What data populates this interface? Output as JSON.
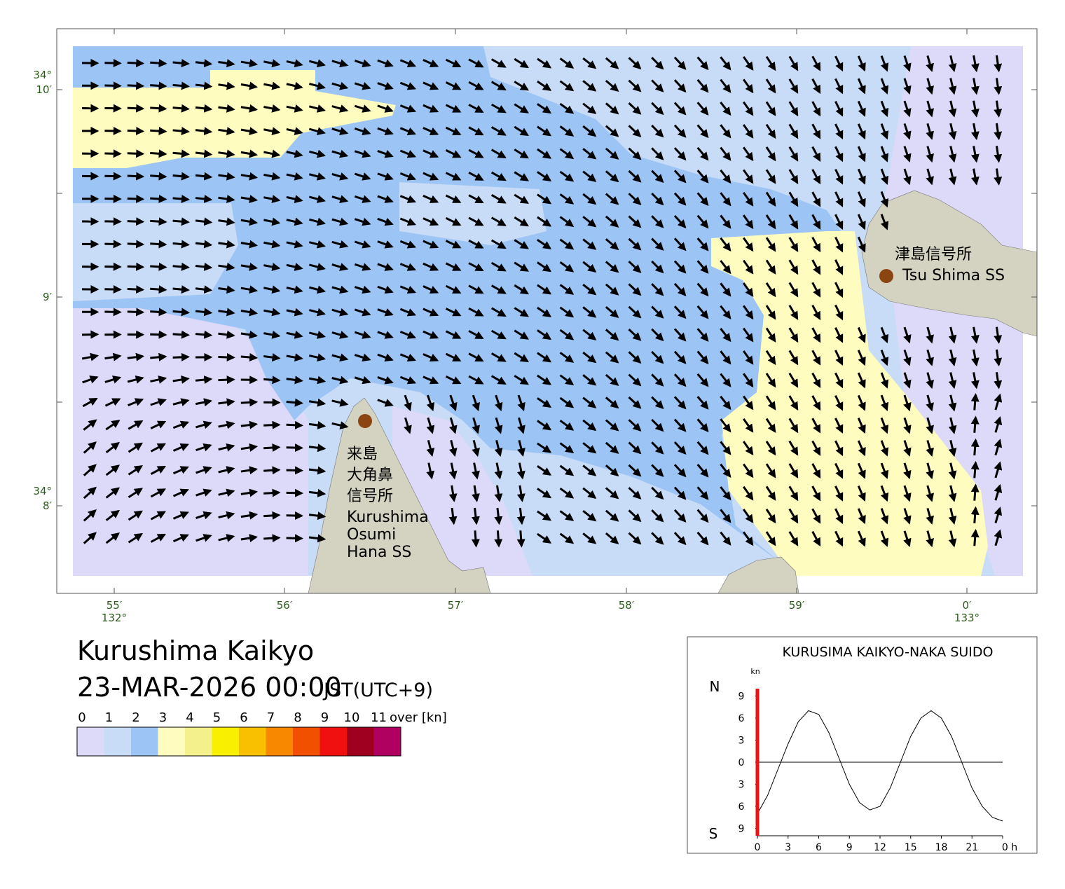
{
  "map": {
    "lat_labels": [
      {
        "deg": "34°",
        "min": "10′"
      },
      {
        "min": "9′"
      },
      {
        "deg": "34°",
        "min": "8′"
      }
    ],
    "lon_labels": [
      {
        "min": "55′",
        "deg": "132°"
      },
      {
        "min": "56′"
      },
      {
        "min": "57′"
      },
      {
        "min": "58′"
      },
      {
        "min": "59′"
      },
      {
        "min": "0′",
        "deg": "133°"
      }
    ],
    "places": [
      {
        "lines": [
          "来島",
          "大角鼻",
          "信号所",
          "Kurushima",
          "Osumi",
          "Hana SS"
        ]
      },
      {
        "lines": [
          "津島信号所",
          "Tsu Shima SS"
        ]
      }
    ]
  },
  "header": {
    "title": "Kurushima Kaikyo",
    "datetime": "23-MAR-2026 00:00",
    "timezone": "JST(UTC+9)"
  },
  "legend": {
    "labels": [
      "0",
      "1",
      "2",
      "3",
      "4",
      "5",
      "6",
      "7",
      "8",
      "9",
      "10",
      "11",
      "over [kn]"
    ],
    "colors": [
      "#dcdaf8",
      "#c8dcf8",
      "#9cc4f4",
      "#fffcc0",
      "#f4f08c",
      "#f8f000",
      "#f8c000",
      "#f88800",
      "#f05000",
      "#f01010",
      "#a00020",
      "#b00060"
    ]
  },
  "chart_data": {
    "type": "line",
    "title": "KURUSIMA KAIKYO-NAKA SUIDO",
    "y_unit": "kn",
    "north_label": "N",
    "south_label": "S",
    "x": [
      0,
      1,
      2,
      3,
      4,
      5,
      6,
      7,
      8,
      9,
      10,
      11,
      12,
      13,
      14,
      15,
      16,
      17,
      18,
      19,
      20,
      21,
      22,
      23,
      24
    ],
    "values": [
      -7,
      -4.5,
      -1,
      2.5,
      5.5,
      7,
      6.5,
      4,
      0.5,
      -3,
      -5.5,
      -6.5,
      -6,
      -3.5,
      0,
      3.5,
      6,
      7,
      6,
      3.5,
      0,
      -3.5,
      -6,
      -7.5,
      -8
    ],
    "color": "#000000",
    "marker_x": 0,
    "marker_color": "#ee1111",
    "xlim": [
      0,
      24
    ],
    "ylim": [
      -10,
      10
    ],
    "xticks": [
      0,
      3,
      6,
      9,
      12,
      15,
      18,
      21,
      {
        "value": 24,
        "label": "0 h"
      }
    ],
    "yticks": [
      9,
      6,
      3,
      0,
      {
        "value": -3,
        "label": "3"
      },
      {
        "value": -6,
        "label": "6"
      },
      {
        "value": -9,
        "label": "9"
      }
    ]
  }
}
